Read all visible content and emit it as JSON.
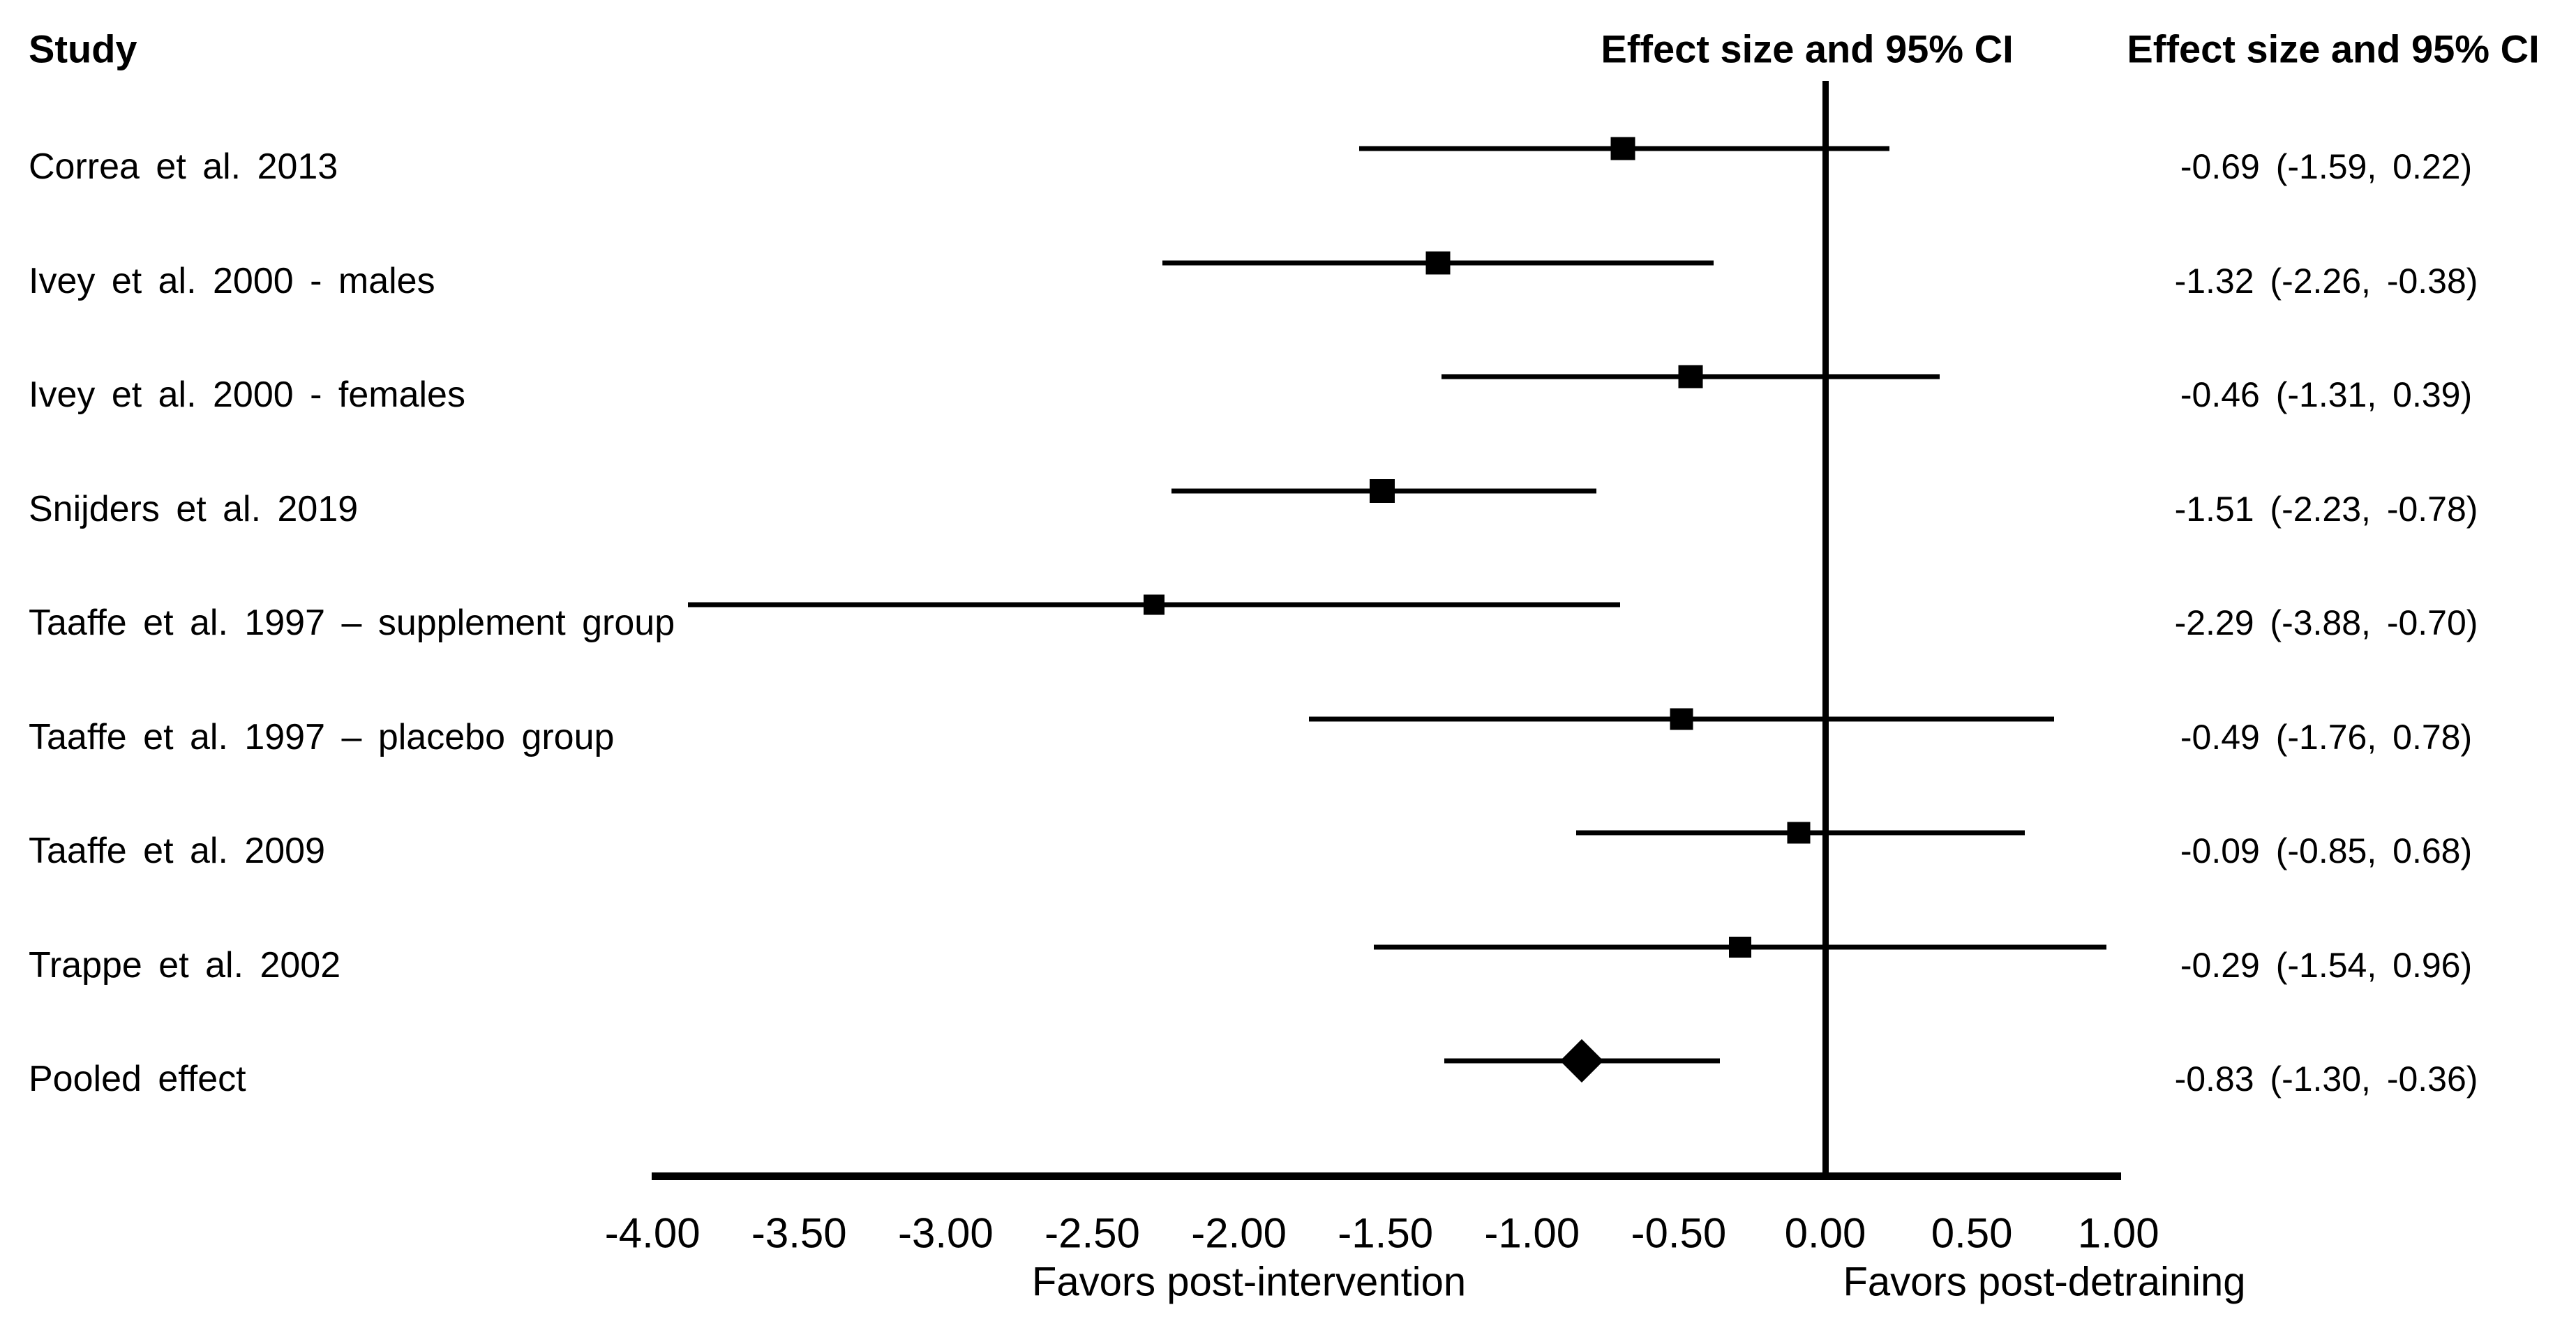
{
  "figure": {
    "background_color": "#ffffff",
    "foreground_color": "#000000"
  },
  "chart_data": {
    "type": "forest",
    "columns": {
      "study": "Study",
      "plot": "Effect size and 95% CI",
      "values": "Effect size and 95% CI"
    },
    "studies": [
      {
        "label": "Correa et al. 2013",
        "effect": -0.69,
        "ci_lower": -1.59,
        "ci_upper": 0.22,
        "value_text": "-0.69 (-1.59, 0.22)",
        "marker": "square",
        "marker_size": 35
      },
      {
        "label": "Ivey et al. 2000 - males",
        "effect": -1.32,
        "ci_lower": -2.26,
        "ci_upper": -0.38,
        "value_text": "-1.32 (-2.26, -0.38)",
        "marker": "square",
        "marker_size": 35
      },
      {
        "label": "Ivey et al. 2000 - females",
        "effect": -0.46,
        "ci_lower": -1.31,
        "ci_upper": 0.39,
        "value_text": "-0.46 (-1.31, 0.39)",
        "marker": "square",
        "marker_size": 35
      },
      {
        "label": "Snijders et al. 2019",
        "effect": -1.51,
        "ci_lower": -2.23,
        "ci_upper": -0.78,
        "value_text": "-1.51 (-2.23, -0.78)",
        "marker": "square",
        "marker_size": 36
      },
      {
        "label": "Taaffe et al. 1997 – supplement group",
        "effect": -2.29,
        "ci_lower": -3.88,
        "ci_upper": -0.7,
        "value_text": "-2.29 (-3.88, -0.70)",
        "marker": "square",
        "marker_size": 30
      },
      {
        "label": "Taaffe et al. 1997 – placebo group",
        "effect": -0.49,
        "ci_lower": -1.76,
        "ci_upper": 0.78,
        "value_text": "-0.49 (-1.76, 0.78)",
        "marker": "square",
        "marker_size": 33
      },
      {
        "label": "Taaffe et al. 2009",
        "effect": -0.09,
        "ci_lower": -0.85,
        "ci_upper": 0.68,
        "value_text": "-0.09 (-0.85, 0.68)",
        "marker": "square",
        "marker_size": 33
      },
      {
        "label": "Trappe et al. 2002",
        "effect": -0.29,
        "ci_lower": -1.54,
        "ci_upper": 0.96,
        "value_text": "-0.29 (-1.54, 0.96)",
        "marker": "square",
        "marker_size": 32
      },
      {
        "label": "Pooled effect",
        "effect": -0.83,
        "ci_lower": -1.3,
        "ci_upper": -0.36,
        "value_text": "-0.83 (-1.30, -0.36)",
        "marker": "diamond",
        "marker_size": 62
      }
    ],
    "x_axis": {
      "min": -4.0,
      "max": 1.0,
      "tick_step": 0.5,
      "ticks": [
        {
          "value": -4.0,
          "label": "-4.00"
        },
        {
          "value": -3.5,
          "label": "-3.50"
        },
        {
          "value": -3.0,
          "label": "-3.00"
        },
        {
          "value": -2.5,
          "label": "-2.50"
        },
        {
          "value": -2.0,
          "label": "-2.00"
        },
        {
          "value": -1.5,
          "label": "-1.50"
        },
        {
          "value": -1.0,
          "label": "-1.00"
        },
        {
          "value": -0.5,
          "label": "-0.50"
        },
        {
          "value": 0.0,
          "label": "0.00"
        },
        {
          "value": 0.5,
          "label": "0.50"
        },
        {
          "value": 1.0,
          "label": "1.00"
        }
      ],
      "zero_line_value": 0.0,
      "left_label": "Favors post-intervention",
      "right_label": "Favors post-detraining"
    }
  }
}
